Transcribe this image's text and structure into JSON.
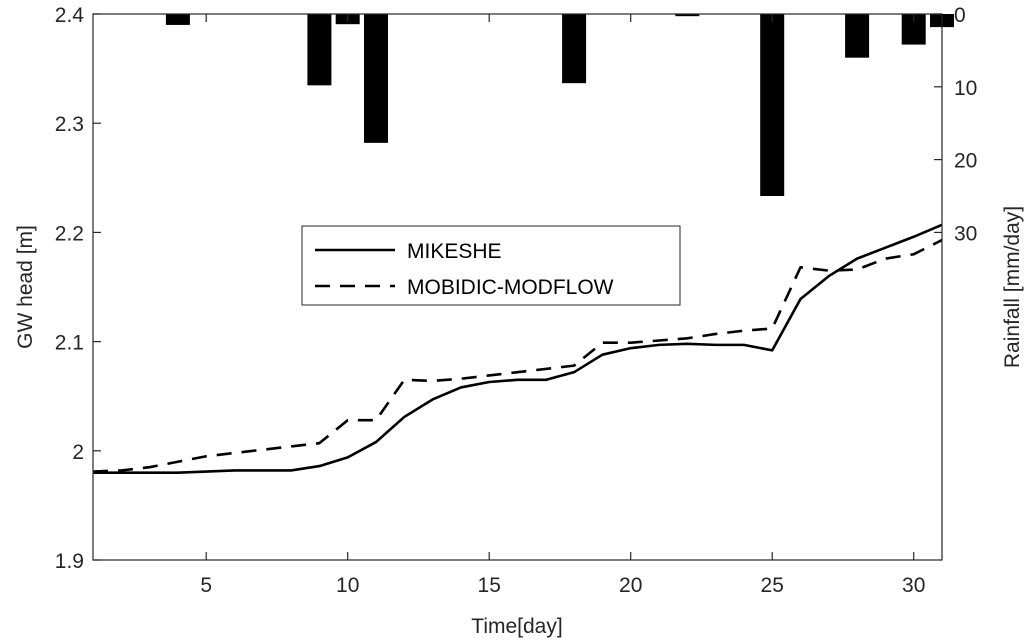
{
  "chart_data": {
    "type": "line",
    "title": "",
    "xlabel": "Time[day]",
    "ylabel": "GW head [m]",
    "y2label": "Rainfall [mm/day]",
    "xlim": [
      1,
      31
    ],
    "ylim": [
      1.9,
      2.4
    ],
    "y2lim": [
      0,
      75
    ],
    "y2_reversed": true,
    "x_ticks": [
      5,
      10,
      15,
      20,
      25,
      30
    ],
    "y_ticks": [
      1.9,
      2.0,
      2.1,
      2.2,
      2.3,
      2.4
    ],
    "y_tick_labels": [
      "1.9",
      "2",
      "2.1",
      "2.2",
      "2.3",
      "2.4"
    ],
    "y2_ticks": [
      0,
      10,
      20,
      30
    ],
    "grid": false,
    "legend_position": "center",
    "x": [
      1,
      2,
      3,
      4,
      5,
      6,
      7,
      8,
      9,
      10,
      11,
      12,
      13,
      14,
      15,
      16,
      17,
      18,
      19,
      20,
      21,
      22,
      23,
      24,
      25,
      26,
      27,
      28,
      29,
      30,
      31
    ],
    "series": [
      {
        "name": "MIKESHE",
        "style": "solid",
        "values": [
          1.98,
          1.98,
          1.98,
          1.98,
          1.981,
          1.982,
          1.982,
          1.982,
          1.986,
          1.994,
          2.008,
          2.031,
          2.047,
          2.058,
          2.063,
          2.065,
          2.065,
          2.072,
          2.088,
          2.094,
          2.097,
          2.098,
          2.097,
          2.097,
          2.092,
          2.139,
          2.16,
          2.176,
          2.186,
          2.196,
          2.207
        ]
      },
      {
        "name": "MOBIDIC-MODFLOW",
        "style": "dashed",
        "values": [
          1.981,
          1.982,
          1.985,
          1.99,
          1.995,
          1.998,
          2.001,
          2.004,
          2.007,
          2.028,
          2.028,
          2.065,
          2.064,
          2.066,
          2.069,
          2.072,
          2.075,
          2.078,
          2.099,
          2.099,
          2.101,
          2.103,
          2.107,
          2.11,
          2.112,
          2.168,
          2.165,
          2.166,
          2.176,
          2.18,
          2.193
        ]
      }
    ],
    "rainfall": {
      "name": "Rainfall",
      "days": [
        4,
        9,
        10,
        11,
        18,
        22,
        25,
        28,
        30,
        31
      ],
      "values": [
        1.5,
        9.8,
        1.4,
        17.7,
        9.5,
        0.3,
        25.0,
        6.0,
        4.2,
        1.8
      ]
    }
  }
}
